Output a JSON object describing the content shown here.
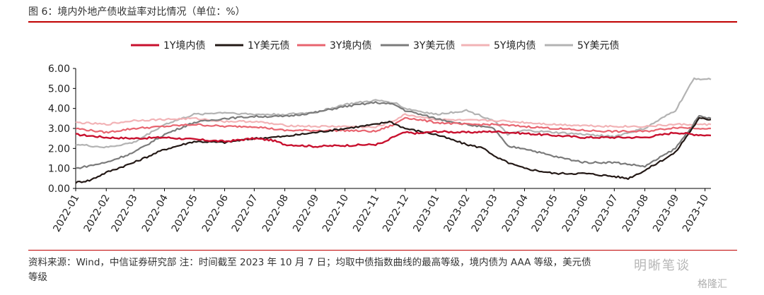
{
  "figure": {
    "title": "图 6：境内外地产债收益率对比情况（单位：%）",
    "source_line1": "资料来源：Wind，中信证券研究部 注：时间截至 2023 年 10 月 7 日；均取中债指数曲线的最高等级，境内债为 AAA 等级，美元债",
    "source_line2": "等级",
    "watermark": "明晰笔谈",
    "watermark2": "格隆汇"
  },
  "chart_data": {
    "type": "line",
    "title": "境内外地产债收益率对比情况",
    "ylabel": "",
    "xlabel": "",
    "ylim": [
      0,
      6
    ],
    "yticks": [
      0.0,
      1.0,
      2.0,
      3.0,
      4.0,
      5.0,
      6.0
    ],
    "ytick_labels": [
      "0.00",
      "1.00",
      "2.00",
      "3.00",
      "4.00",
      "5.00",
      "6.00"
    ],
    "x_ticks": [
      "2022-01",
      "2022-02",
      "2022-03",
      "2022-04",
      "2022-05",
      "2022-06",
      "2022-07",
      "2022-08",
      "2022-09",
      "2022-10",
      "2022-11",
      "2022-12",
      "2023-01",
      "2023-02",
      "2023-03",
      "2023-04",
      "2023-05",
      "2023-06",
      "2023-07",
      "2023-08",
      "2023-09",
      "2023-10"
    ],
    "x_range": [
      "2022-01-01",
      "2023-10-07"
    ],
    "grid": false,
    "legend_position": "top",
    "series": [
      {
        "name": "1Y境内债",
        "color": "#c8102e",
        "width": 2.4,
        "x": [
          "2022-01-01",
          "2022-02-01",
          "2022-03-01",
          "2022-04-01",
          "2022-05-01",
          "2022-06-01",
          "2022-07-01",
          "2022-07-20",
          "2022-08-01",
          "2022-09-01",
          "2022-10-01",
          "2022-11-01",
          "2022-11-10",
          "2022-11-20",
          "2022-12-01",
          "2022-12-15",
          "2023-01-01",
          "2023-02-01",
          "2023-03-01",
          "2023-04-01",
          "2023-05-01",
          "2023-06-01",
          "2023-07-01",
          "2023-08-01",
          "2023-09-01",
          "2023-09-20",
          "2023-10-07"
        ],
        "y": [
          2.7,
          2.55,
          2.5,
          2.55,
          2.45,
          2.35,
          2.5,
          2.4,
          2.2,
          2.1,
          2.15,
          2.2,
          2.3,
          2.6,
          2.8,
          2.75,
          2.85,
          2.8,
          2.85,
          2.75,
          2.65,
          2.55,
          2.55,
          2.55,
          2.8,
          2.7,
          2.65
        ]
      },
      {
        "name": "1Y美元债",
        "color": "#231815",
        "width": 2.2,
        "x": [
          "2022-01-01",
          "2022-01-15",
          "2022-02-01",
          "2022-03-01",
          "2022-04-01",
          "2022-05-01",
          "2022-06-01",
          "2022-07-01",
          "2022-08-01",
          "2022-09-01",
          "2022-10-01",
          "2022-11-01",
          "2022-11-15",
          "2022-12-01",
          "2023-01-01",
          "2023-02-01",
          "2023-02-20",
          "2023-03-01",
          "2023-03-20",
          "2023-04-01",
          "2023-05-01",
          "2023-06-01",
          "2023-07-01",
          "2023-07-15",
          "2023-08-01",
          "2023-09-01",
          "2023-09-25",
          "2023-10-07"
        ],
        "y": [
          0.3,
          0.4,
          0.8,
          1.3,
          1.95,
          2.35,
          2.3,
          2.5,
          2.6,
          2.8,
          3.0,
          3.2,
          3.35,
          3.0,
          2.7,
          2.2,
          2.0,
          1.6,
          1.2,
          1.0,
          0.75,
          0.75,
          0.6,
          0.5,
          0.9,
          1.8,
          3.5,
          3.45
        ]
      },
      {
        "name": "3Y境内债",
        "color": "#e8646f",
        "width": 2.2,
        "x": [
          "2022-01-01",
          "2022-02-01",
          "2022-03-01",
          "2022-04-01",
          "2022-05-01",
          "2022-06-01",
          "2022-07-01",
          "2022-08-01",
          "2022-09-01",
          "2022-10-01",
          "2022-11-01",
          "2022-11-20",
          "2022-12-01",
          "2023-01-01",
          "2023-02-01",
          "2023-03-01",
          "2023-04-01",
          "2023-05-01",
          "2023-06-01",
          "2023-07-01",
          "2023-08-01",
          "2023-09-01",
          "2023-10-07"
        ],
        "y": [
          3.0,
          2.8,
          3.0,
          3.1,
          3.2,
          3.1,
          3.1,
          2.9,
          2.9,
          2.9,
          2.85,
          3.2,
          3.55,
          3.3,
          3.2,
          3.2,
          3.1,
          3.0,
          2.9,
          2.85,
          2.85,
          3.05,
          3.0
        ]
      },
      {
        "name": "3Y美元债",
        "color": "#7b7b7b",
        "width": 2.2,
        "x": [
          "2022-01-01",
          "2022-02-01",
          "2022-03-01",
          "2022-04-01",
          "2022-05-01",
          "2022-06-01",
          "2022-07-01",
          "2022-08-01",
          "2022-09-01",
          "2022-10-01",
          "2022-11-01",
          "2022-11-20",
          "2022-12-01",
          "2023-01-01",
          "2023-02-01",
          "2023-03-01",
          "2023-03-15",
          "2023-04-01",
          "2023-05-01",
          "2023-06-01",
          "2023-07-01",
          "2023-08-01",
          "2023-09-01",
          "2023-09-25",
          "2023-10-07"
        ],
        "y": [
          1.0,
          1.3,
          1.8,
          2.7,
          3.3,
          3.5,
          3.6,
          3.6,
          3.8,
          4.1,
          4.3,
          4.2,
          3.9,
          3.5,
          3.2,
          3.0,
          2.1,
          2.0,
          1.6,
          1.3,
          1.3,
          1.1,
          2.0,
          3.6,
          3.5
        ]
      },
      {
        "name": "5Y境内债",
        "color": "#f2b3b6",
        "width": 2.2,
        "x": [
          "2022-01-01",
          "2022-02-01",
          "2022-03-01",
          "2022-04-01",
          "2022-05-01",
          "2022-06-01",
          "2022-07-01",
          "2022-08-01",
          "2022-09-01",
          "2022-10-01",
          "2022-11-01",
          "2022-11-20",
          "2022-12-01",
          "2023-01-01",
          "2023-02-01",
          "2023-03-01",
          "2023-04-01",
          "2023-05-01",
          "2023-06-01",
          "2023-07-01",
          "2023-08-01",
          "2023-09-01",
          "2023-10-07"
        ],
        "y": [
          3.3,
          3.2,
          3.4,
          3.45,
          3.5,
          3.35,
          3.35,
          3.15,
          3.1,
          3.1,
          3.05,
          3.4,
          3.7,
          3.45,
          3.4,
          3.4,
          3.3,
          3.2,
          3.15,
          3.1,
          3.1,
          3.2,
          3.2
        ]
      },
      {
        "name": "5Y美元债",
        "color": "#b3b3b3",
        "width": 2.2,
        "x": [
          "2022-01-01",
          "2022-02-01",
          "2022-03-01",
          "2022-04-01",
          "2022-05-01",
          "2022-06-01",
          "2022-07-01",
          "2022-08-01",
          "2022-09-01",
          "2022-10-01",
          "2022-11-01",
          "2022-11-20",
          "2022-12-01",
          "2023-01-01",
          "2023-02-01",
          "2023-03-01",
          "2023-03-15",
          "2023-04-01",
          "2023-05-01",
          "2023-06-01",
          "2023-07-01",
          "2023-08-01",
          "2023-09-01",
          "2023-09-20",
          "2023-10-07"
        ],
        "y": [
          2.2,
          2.05,
          2.3,
          3.2,
          3.7,
          3.8,
          3.7,
          3.7,
          3.8,
          4.2,
          4.4,
          4.3,
          4.0,
          3.7,
          3.9,
          3.4,
          2.7,
          2.9,
          2.8,
          2.7,
          2.6,
          3.0,
          3.9,
          5.5,
          5.45
        ]
      }
    ]
  }
}
